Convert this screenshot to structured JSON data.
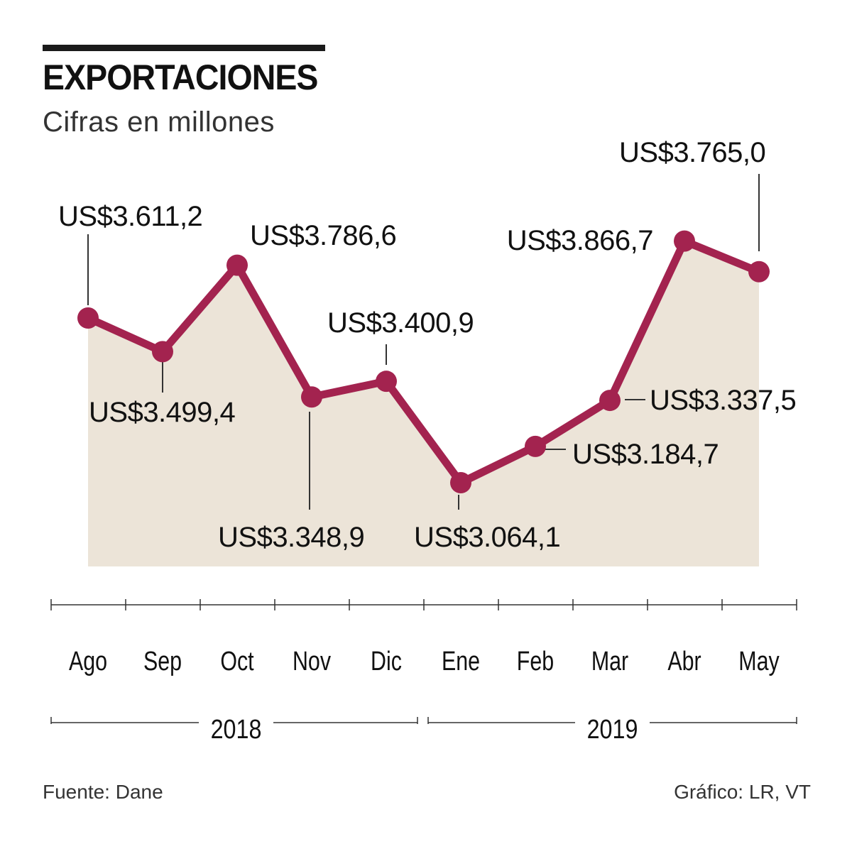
{
  "header": {
    "title": "EXPORTACIONES",
    "subtitle": "Cifras en millones"
  },
  "footer": {
    "source": "Fuente: Dane",
    "credit": "Gráfico: LR, VT"
  },
  "colors": {
    "line": "#a3234f",
    "area": "#ece4d8",
    "text": "#111111"
  },
  "chart_data": {
    "type": "area",
    "categories": [
      "Ago",
      "Sep",
      "Oct",
      "Nov",
      "Dic",
      "Ene",
      "Feb",
      "Mar",
      "Abr",
      "May"
    ],
    "series": [
      {
        "values": [
          3611.2,
          3499.4,
          3786.6,
          3348.9,
          3400.9,
          3064.1,
          3184.7,
          3337.5,
          3866.7,
          3765.0
        ],
        "labels": [
          "US$3.611,2",
          "US$3.499,4",
          "US$3.786,6",
          "US$3.348,9",
          "US$3.400,9",
          "US$3.064,1",
          "US$3.184,7",
          "US$3.337,5",
          "US$3.866,7",
          "US$3.765,0"
        ]
      }
    ],
    "year_groups": [
      {
        "label": "2018",
        "from": 0,
        "to": 4
      },
      {
        "label": "2019",
        "from": 5,
        "to": 9
      }
    ],
    "ylim": [
      2800,
      4000
    ],
    "xlabel": "",
    "ylabel": "",
    "grid": false
  }
}
